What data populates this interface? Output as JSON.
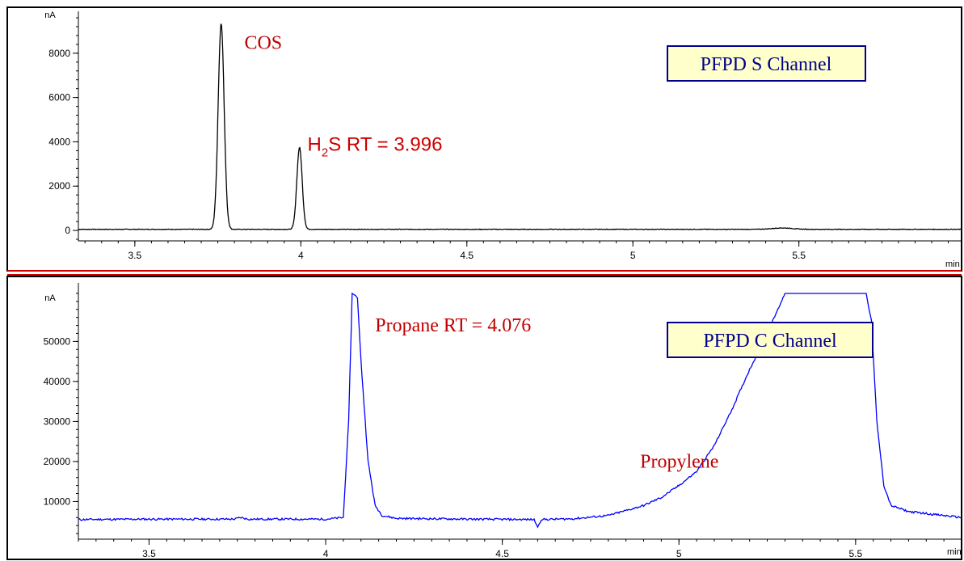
{
  "colors": {
    "panel_top_trace": "#000000",
    "panel_bottom_trace": "#0000ff",
    "annotation_red": "#c00000",
    "box_fill": "#ffffcc",
    "box_border": "#00008b",
    "box_text": "#00008b",
    "divider": "#cc0000"
  },
  "chart_data": [
    {
      "type": "line",
      "id": "top",
      "unit_label": "nA",
      "x_unit_label": "min",
      "xlim": [
        3.33,
        5.99
      ],
      "ylim": [
        -400,
        9600
      ],
      "grid": false,
      "x_ticks": [
        3.5,
        4,
        4.5,
        5,
        5.5
      ],
      "x_tick_labels": [
        "3.5",
        "4",
        "4.5",
        "5",
        "5.5"
      ],
      "y_ticks": [
        0,
        2000,
        4000,
        6000,
        8000
      ],
      "y_tick_labels": [
        "0",
        "2000",
        "4000",
        "6000",
        "8000"
      ],
      "baseline": 50,
      "peaks": [
        {
          "rt": 3.76,
          "height": 9300,
          "width": 0.009
        },
        {
          "rt": 3.996,
          "height": 3700,
          "width": 0.008
        },
        {
          "rt": 5.45,
          "height": 60,
          "width": 0.03
        }
      ],
      "annotations": [
        {
          "name": "cos",
          "text": "COS",
          "x": 3.83,
          "y": 8200
        },
        {
          "name": "h2s",
          "text_main": "H",
          "text_sub": "2",
          "text_rest": "S RT = 3.996",
          "x": 4.02,
          "y": 3600
        }
      ],
      "label_box": {
        "text": "PFPD S Channel"
      }
    },
    {
      "type": "line",
      "id": "bottom",
      "unit_label": "nA",
      "x_unit_label": "min",
      "xlim": [
        3.3,
        5.8
      ],
      "ylim": [
        1000,
        63000
      ],
      "grid": false,
      "x_ticks": [
        3.5,
        4,
        4.5,
        5,
        5.5
      ],
      "x_tick_labels": [
        "3.5",
        "4",
        "4.5",
        "5",
        "5.5"
      ],
      "y_ticks": [
        10000,
        20000,
        30000,
        40000,
        50000
      ],
      "y_tick_labels": [
        "10000",
        "20000",
        "30000",
        "40000",
        "50000"
      ],
      "baseline": 5500,
      "points": [
        [
          3.3,
          5500
        ],
        [
          3.5,
          5600
        ],
        [
          3.74,
          5600
        ],
        [
          3.76,
          6000
        ],
        [
          3.78,
          5600
        ],
        [
          4.0,
          5600
        ],
        [
          4.05,
          6000
        ],
        [
          4.065,
          30000
        ],
        [
          4.075,
          62000
        ],
        [
          4.09,
          61000
        ],
        [
          4.1,
          45000
        ],
        [
          4.12,
          20000
        ],
        [
          4.14,
          9000
        ],
        [
          4.16,
          6500
        ],
        [
          4.2,
          5800
        ],
        [
          4.4,
          5600
        ],
        [
          4.59,
          5500
        ],
        [
          4.6,
          3600
        ],
        [
          4.61,
          5500
        ],
        [
          4.7,
          5700
        ],
        [
          4.8,
          6500
        ],
        [
          4.9,
          9000
        ],
        [
          4.95,
          11000
        ],
        [
          5.0,
          14000
        ],
        [
          5.05,
          17500
        ],
        [
          5.1,
          24000
        ],
        [
          5.15,
          33000
        ],
        [
          5.2,
          43000
        ],
        [
          5.25,
          52000
        ],
        [
          5.28,
          58000
        ],
        [
          5.3,
          62000
        ],
        [
          5.53,
          62000
        ],
        [
          5.545,
          55000
        ],
        [
          5.56,
          30000
        ],
        [
          5.58,
          14000
        ],
        [
          5.6,
          9000
        ],
        [
          5.65,
          7500
        ],
        [
          5.7,
          7000
        ],
        [
          5.8,
          6000
        ]
      ],
      "annotations": [
        {
          "name": "propane",
          "text": "Propane RT = 4.076",
          "x": 4.14,
          "y": 52500
        },
        {
          "name": "propylene",
          "text": "Propylene",
          "x": 4.89,
          "y": 18500
        }
      ],
      "label_box": {
        "text": "PFPD C Channel"
      }
    }
  ]
}
